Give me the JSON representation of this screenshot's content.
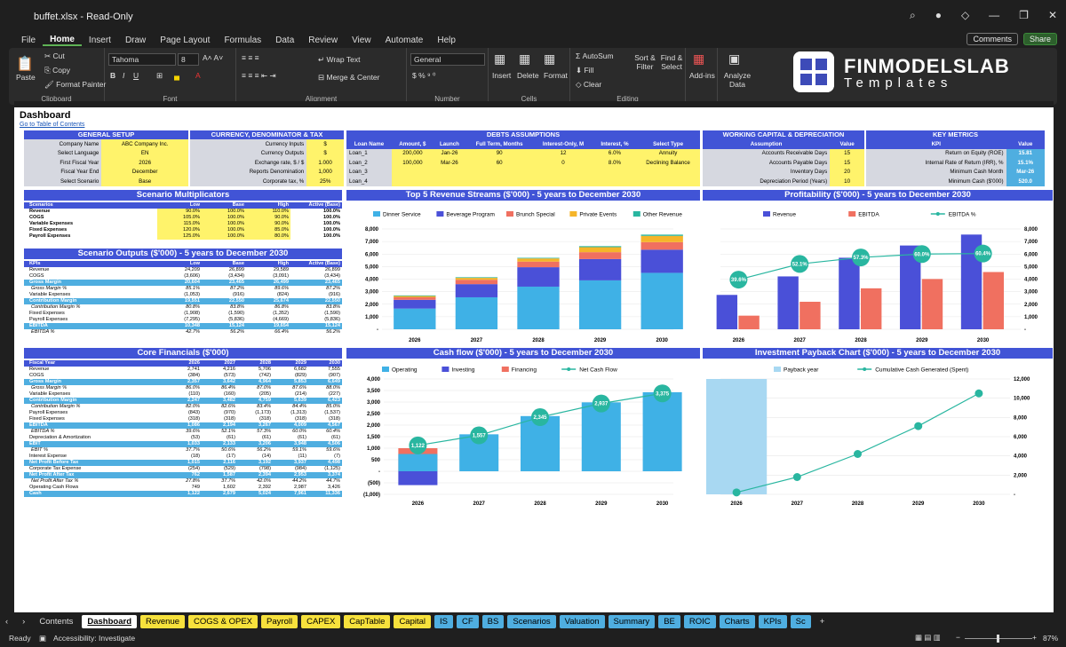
{
  "window": {
    "filename": "buffet.xlsx",
    "mode": "Read-Only"
  },
  "menu": {
    "items": [
      "File",
      "Home",
      "Insert",
      "Draw",
      "Page Layout",
      "Formulas",
      "Data",
      "Review",
      "View",
      "Automate",
      "Help"
    ],
    "active": "Home",
    "comments": "Comments",
    "share": "Share"
  },
  "ribbon": {
    "paste": "Paste",
    "cut": "Cut",
    "copy": "Copy",
    "format_painter": "Format Painter",
    "clipboard": "Clipboard",
    "font_name": "Tahoma",
    "font_size": "8",
    "font": "Font",
    "wrap": "Wrap Text",
    "merge": "Merge & Center",
    "alignment": "Alignment",
    "number_format": "General",
    "number": "Number",
    "insert": "Insert",
    "delete": "Delete",
    "format": "Format",
    "cells": "Cells",
    "autosum": "AutoSum",
    "fill": "Fill",
    "clear": "Clear",
    "sort": "Sort & Filter",
    "find": "Find & Select",
    "editing": "Editing",
    "addins": "Add-ins",
    "analyze": "Analyze Data"
  },
  "logo": {
    "line1": "FINMODELSLAB",
    "line2": "Templates"
  },
  "sheet": {
    "title": "Dashboard",
    "link": "Go to Table of Contents"
  },
  "general_setup": {
    "title": "GENERAL SETUP",
    "rows": [
      [
        "Company Name",
        "ABC Company Inc."
      ],
      [
        "Select Language",
        "EN"
      ],
      [
        "First Fiscal Year",
        "2026"
      ],
      [
        "Fiscal Year End",
        "December"
      ],
      [
        "Select Scenario",
        "Base"
      ]
    ]
  },
  "currency": {
    "title": "CURRENCY, DENOMINATOR & TAX",
    "rows": [
      [
        "Currency Inputs",
        "$"
      ],
      [
        "Currency Outputs",
        "$"
      ],
      [
        "Exchange rate, $ / $",
        "1.000"
      ],
      [
        "Reports Denomination",
        "1,000"
      ],
      [
        "Corporate tax, %",
        "25%"
      ]
    ]
  },
  "debts": {
    "title": "DEBTS ASSUMPTIONS",
    "headers": [
      "Loan Name",
      "Amount, $",
      "Launch",
      "Full Term, Months",
      "Interest-Only, M",
      "Interest, %",
      "Select Type"
    ],
    "rows": [
      [
        "Loan_1",
        "200,000",
        "Jan-26",
        "90",
        "12",
        "6.0%",
        "Annuity"
      ],
      [
        "Loan_2",
        "100,000",
        "Mar-26",
        "60",
        "0",
        "8.0%",
        "Declining Balance"
      ],
      [
        "Loan_3",
        "",
        "",
        "",
        "",
        "",
        ""
      ],
      [
        "Loan_4",
        "",
        "",
        "",
        "",
        "",
        ""
      ]
    ]
  },
  "working_capital": {
    "title": "WORKING CAPITAL & DEPRECIATION",
    "headers": [
      "Assumption",
      "Value"
    ],
    "rows": [
      [
        "Accounts Receivable Days",
        "15"
      ],
      [
        "Accounts Payable Days",
        "15"
      ],
      [
        "Inventory Days",
        "20"
      ],
      [
        "Depreciation Period (Years)",
        "10"
      ]
    ]
  },
  "key_metrics": {
    "title": "KEY METRICS",
    "headers": [
      "KPI",
      "Value"
    ],
    "rows": [
      [
        "Return on Equity (ROE)",
        "15.81"
      ],
      [
        "Internal Rate of Return (IRR), %",
        "15.1%"
      ],
      [
        "Minimum Cash Month",
        "Mar-26"
      ],
      [
        "Minimum Cash ($'000)",
        "520.0"
      ]
    ]
  },
  "scenario_mult": {
    "title": "Scenario Multiplicators",
    "headers": [
      "Scenarios",
      "Low",
      "Base",
      "High",
      "Active (Base)"
    ],
    "rows": [
      [
        "Revenue",
        "90.0%",
        "100.0%",
        "110.0%",
        "100.0%"
      ],
      [
        "COGS",
        "105.0%",
        "100.0%",
        "90.0%",
        "100.0%"
      ],
      [
        "Variable Expenses",
        "115.0%",
        "100.0%",
        "90.0%",
        "100.0%"
      ],
      [
        "Fixed Expenses",
        "120.0%",
        "100.0%",
        "85.0%",
        "100.0%"
      ],
      [
        "Payroll Expenses",
        "125.0%",
        "100.0%",
        "80.0%",
        "100.0%"
      ]
    ]
  },
  "scenario_out": {
    "title": "Scenario Outputs ($'000) - 5 years to December 2030",
    "headers": [
      "KPIs",
      "Low",
      "Base",
      "High",
      "Active (Base)"
    ],
    "rows": [
      {
        "t": "n",
        "v": [
          "Revenue",
          "24,209",
          "26,899",
          "29,589",
          "26,899"
        ]
      },
      {
        "t": "n",
        "v": [
          "COGS",
          "(3,606)",
          "(3,434)",
          "(3,091)",
          "(3,434)"
        ]
      },
      {
        "t": "h",
        "v": [
          "Gross Margin",
          "20,604",
          "23,465",
          "26,499",
          "23,465"
        ]
      },
      {
        "t": "i",
        "v": [
          "Gross Margin %",
          "85.1%",
          "87.2%",
          "89.6%",
          "87.2%"
        ]
      },
      {
        "t": "n",
        "v": [
          "Variable Expenses",
          "(1,053)",
          "(916)",
          "(824)",
          "(916)"
        ]
      },
      {
        "t": "h",
        "v": [
          "Contribution Margin",
          "19,551",
          "22,550",
          "25,674",
          "22,550"
        ]
      },
      {
        "t": "i",
        "v": [
          "Contribution Margin %",
          "80.8%",
          "83.8%",
          "86.8%",
          "83.8%"
        ]
      },
      {
        "t": "n",
        "v": [
          "Fixed Expenses",
          "(1,908)",
          "(1,590)",
          "(1,352)",
          "(1,590)"
        ]
      },
      {
        "t": "n",
        "v": [
          "Payroll Expenses",
          "(7,295)",
          "(5,836)",
          "(4,669)",
          "(5,836)"
        ]
      },
      {
        "t": "h",
        "v": [
          "EBITDA",
          "10,348",
          "15,124",
          "19,654",
          "15,124"
        ]
      },
      {
        "t": "i",
        "v": [
          "EBITDA %",
          "42.7%",
          "56.2%",
          "66.4%",
          "56.2%"
        ]
      }
    ]
  },
  "core": {
    "title": "Core Financials ($'000)",
    "headers": [
      "Fiscal Year",
      "2026",
      "2027",
      "2028",
      "2029",
      "2030"
    ],
    "rows": [
      {
        "t": "n",
        "v": [
          "Revenue",
          "2,741",
          "4,216",
          "5,706",
          "6,682",
          "7,555"
        ]
      },
      {
        "t": "n",
        "v": [
          "COGS",
          "(384)",
          "(573)",
          "(742)",
          "(829)",
          "(907)"
        ]
      },
      {
        "t": "h",
        "v": [
          "Gross Margin",
          "2,357",
          "3,642",
          "4,964",
          "5,853",
          "6,649"
        ]
      },
      {
        "t": "i",
        "v": [
          "Gross Margin %",
          "86.0%",
          "86.4%",
          "87.0%",
          "87.6%",
          "88.0%"
        ]
      },
      {
        "t": "n",
        "v": [
          "Variable Expenses",
          "(110)",
          "(160)",
          "(205)",
          "(214)",
          "(227)"
        ]
      },
      {
        "t": "h",
        "v": [
          "Contribution Margin",
          "2,247",
          "3,482",
          "4,759",
          "5,639",
          "6,423"
        ]
      },
      {
        "t": "i",
        "v": [
          "Contribution Margin %",
          "82.0%",
          "82.6%",
          "83.4%",
          "84.4%",
          "85.0%"
        ]
      },
      {
        "t": "n",
        "v": [
          "Payroll Expenses",
          "(843)",
          "(970)",
          "(1,173)",
          "(1,313)",
          "(1,537)"
        ]
      },
      {
        "t": "n",
        "v": [
          "Fixed Expenses",
          "(318)",
          "(318)",
          "(318)",
          "(318)",
          "(318)"
        ]
      },
      {
        "t": "h",
        "v": [
          "EBITDA",
          "1,086",
          "2,194",
          "3,267",
          "4,009",
          "4,567"
        ]
      },
      {
        "t": "i",
        "v": [
          "EBITDA %",
          "39.6%",
          "52.1%",
          "57.3%",
          "60.0%",
          "60.4%"
        ]
      },
      {
        "t": "n",
        "v": [
          "Depreciation & Amortization",
          "(53)",
          "(61)",
          "(61)",
          "(61)",
          "(61)"
        ]
      },
      {
        "t": "h",
        "v": [
          "EBIT",
          "1,033",
          "2,133",
          "3,206",
          "3,948",
          "4,506"
        ]
      },
      {
        "t": "i",
        "v": [
          "EBIT %",
          "37.7%",
          "50.6%",
          "56.2%",
          "59.1%",
          "59.6%"
        ]
      },
      {
        "t": "n",
        "v": [
          "Interest Expense",
          "(18)",
          "(17)",
          "(14)",
          "(11)",
          "(7)"
        ]
      },
      {
        "t": "h",
        "v": [
          "Net Profit Before Tax",
          "1,015",
          "2,116",
          "3,192",
          "3,937",
          "4,498"
        ]
      },
      {
        "t": "n",
        "v": [
          "Corporate Tax Expense",
          "(254)",
          "(529)",
          "(798)",
          "(984)",
          "(1,125)"
        ]
      },
      {
        "t": "h",
        "v": [
          "Net Profit After Tax",
          "762",
          "1,587",
          "2,394",
          "2,953",
          "3,374"
        ]
      },
      {
        "t": "i",
        "v": [
          "Net Profit After Tax %",
          "27.8%",
          "37.7%",
          "42.0%",
          "44.2%",
          "44.7%"
        ]
      },
      {
        "t": "n",
        "v": [
          "Operating Cash Flows",
          "749",
          "1,602",
          "2,392",
          "2,987",
          "3,426"
        ]
      },
      {
        "t": "h",
        "v": [
          "Cash",
          "1,122",
          "2,679",
          "5,024",
          "7,961",
          "11,336"
        ]
      }
    ]
  },
  "chart_data": [
    {
      "type": "bar",
      "title": "Top 5 Revenue Streams ($'000) - 5 years to December 2030",
      "categories": [
        "2026",
        "2027",
        "2028",
        "2029",
        "2030"
      ],
      "ylim": [
        0,
        8000
      ],
      "yticks": [
        "8,000",
        "7,000",
        "6,000",
        "5,000",
        "4,000",
        "3,000",
        "2,000",
        "1,000",
        "-"
      ],
      "series": [
        {
          "name": "Dinner Service",
          "color": "#3fb1e6",
          "values": [
            1650,
            2550,
            3400,
            3900,
            4500
          ]
        },
        {
          "name": "Beverage Program",
          "color": "#4a50d8",
          "values": [
            700,
            1050,
            1550,
            1700,
            1850
          ]
        },
        {
          "name": "Brunch Special",
          "color": "#f07060",
          "values": [
            200,
            350,
            450,
            550,
            600
          ]
        },
        {
          "name": "Private Events",
          "color": "#f5b52a",
          "values": [
            100,
            150,
            250,
            400,
            500
          ]
        },
        {
          "name": "Other Revenue",
          "color": "#29b6a0",
          "values": [
            50,
            50,
            50,
            80,
            100
          ]
        }
      ]
    },
    {
      "type": "bar",
      "title": "Profitability ($'000) - 5 years to December 2030",
      "categories": [
        "2026",
        "2027",
        "2028",
        "2029",
        "2030"
      ],
      "ylim": [
        0,
        8000
      ],
      "yticks": [
        "8,000",
        "7,000",
        "6,000",
        "5,000",
        "4,000",
        "3,000",
        "2,000",
        "1,000",
        "-"
      ],
      "y2ticks": [
        "80.0%",
        "70.0%",
        "60.0%",
        "50.0%",
        "40.0%",
        "30.0%",
        "20.0%",
        "10.0%",
        "0.0%"
      ],
      "series": [
        {
          "name": "Revenue",
          "color": "#4a50d8",
          "values": [
            2741,
            4216,
            5706,
            6682,
            7555
          ]
        },
        {
          "name": "EBITDA",
          "color": "#f07060",
          "values": [
            1086,
            2194,
            3267,
            4009,
            4567
          ]
        },
        {
          "name": "EBITDA %",
          "color": "#29b6a0",
          "values": [
            39.6,
            52.1,
            57.3,
            60.0,
            60.4
          ]
        }
      ],
      "labels": [
        "39.6%",
        "52.1%",
        "57.3%",
        "60.0%",
        "60.4%"
      ]
    },
    {
      "type": "bar",
      "title": "Cash flow ($'000) - 5 years to December 2030",
      "categories": [
        "2026",
        "2027",
        "2028",
        "2029",
        "2030"
      ],
      "ylim": [
        -1000,
        4000
      ],
      "yticks": [
        "4,000",
        "3,500",
        "3,000",
        "2,500",
        "2,000",
        "1,500",
        "1,000",
        "500",
        "-",
        "(500)",
        "(1,000)"
      ],
      "series": [
        {
          "name": "Operating",
          "color": "#3fb1e6",
          "values": [
            749,
            1602,
            2392,
            2987,
            3426
          ]
        },
        {
          "name": "Investing",
          "color": "#4a50d8",
          "values": [
            -600,
            0,
            0,
            0,
            0
          ]
        },
        {
          "name": "Financing",
          "color": "#f07060",
          "values": [
            1000,
            0,
            0,
            0,
            0
          ]
        },
        {
          "name": "Net Cash Flow",
          "color": "#29b6a0",
          "values": [
            1122,
            1557,
            2345,
            2937,
            3375
          ]
        }
      ],
      "labels": [
        "1,122",
        "1,557",
        "2,345",
        "2,937",
        "3,375"
      ]
    },
    {
      "type": "line",
      "title": "Investment Payback Chart ($'000) - 5 years to December 2030",
      "categories": [
        "2026",
        "2027",
        "2028",
        "2029",
        "2030"
      ],
      "ylim": [
        0,
        12000
      ],
      "yticks": [
        "12,000",
        "10,000",
        "8,000",
        "6,000",
        "4,000",
        "2,000",
        "-"
      ],
      "series": [
        {
          "name": "Payback year",
          "color": "#a8d8f2"
        },
        {
          "name": "Cumulative Cash Generated (Spent)",
          "color": "#29b6a0",
          "values": [
            200,
            1800,
            4200,
            7100,
            10500
          ]
        }
      ]
    }
  ],
  "tabs": [
    {
      "l": "Contents",
      "s": "plain"
    },
    {
      "l": "Dashboard",
      "s": "active"
    },
    {
      "l": "Revenue",
      "s": "y"
    },
    {
      "l": "COGS & OPEX",
      "s": "y"
    },
    {
      "l": "Payroll",
      "s": "y"
    },
    {
      "l": "CAPEX",
      "s": "y"
    },
    {
      "l": "CapTable",
      "s": "y"
    },
    {
      "l": "Capital",
      "s": "y"
    },
    {
      "l": "IS",
      "s": "b"
    },
    {
      "l": "CF",
      "s": "b"
    },
    {
      "l": "BS",
      "s": "b"
    },
    {
      "l": "Scenarios",
      "s": "b"
    },
    {
      "l": "Valuation",
      "s": "b"
    },
    {
      "l": "Summary",
      "s": "b"
    },
    {
      "l": "BE",
      "s": "b"
    },
    {
      "l": "ROIC",
      "s": "b"
    },
    {
      "l": "Charts",
      "s": "b"
    },
    {
      "l": "KPIs",
      "s": "b"
    },
    {
      "l": "Sc",
      "s": "b"
    }
  ],
  "status": {
    "ready": "Ready",
    "accessibility": "Accessibility: Investigate",
    "zoom": "87%"
  }
}
